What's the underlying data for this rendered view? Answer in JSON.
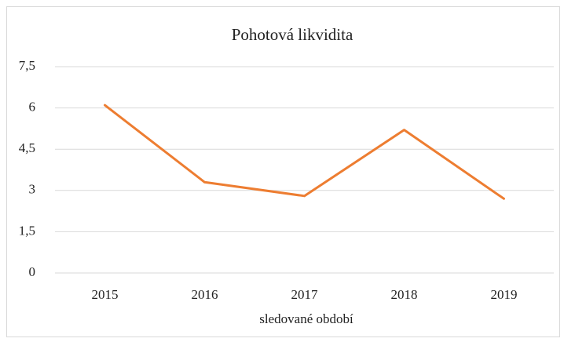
{
  "chart_data": {
    "type": "line",
    "title": "Pohotová likvidita",
    "x_label": "sledované období",
    "categories": [
      "2015",
      "2016",
      "2017",
      "2018",
      "2019"
    ],
    "series": [
      {
        "name": "Pohotová likvidita",
        "color": "#ed7d31",
        "values": [
          6.1,
          3.3,
          2.8,
          5.2,
          2.7
        ]
      }
    ],
    "ylim": [
      0,
      7.5
    ],
    "yticks": [
      0,
      {
        "value": 1.5,
        "label": "1,5"
      },
      3,
      {
        "value": 4.5,
        "label": "4,5"
      },
      6,
      {
        "value": 7.5,
        "label": "7,5"
      }
    ],
    "grid": true,
    "legend": false
  }
}
